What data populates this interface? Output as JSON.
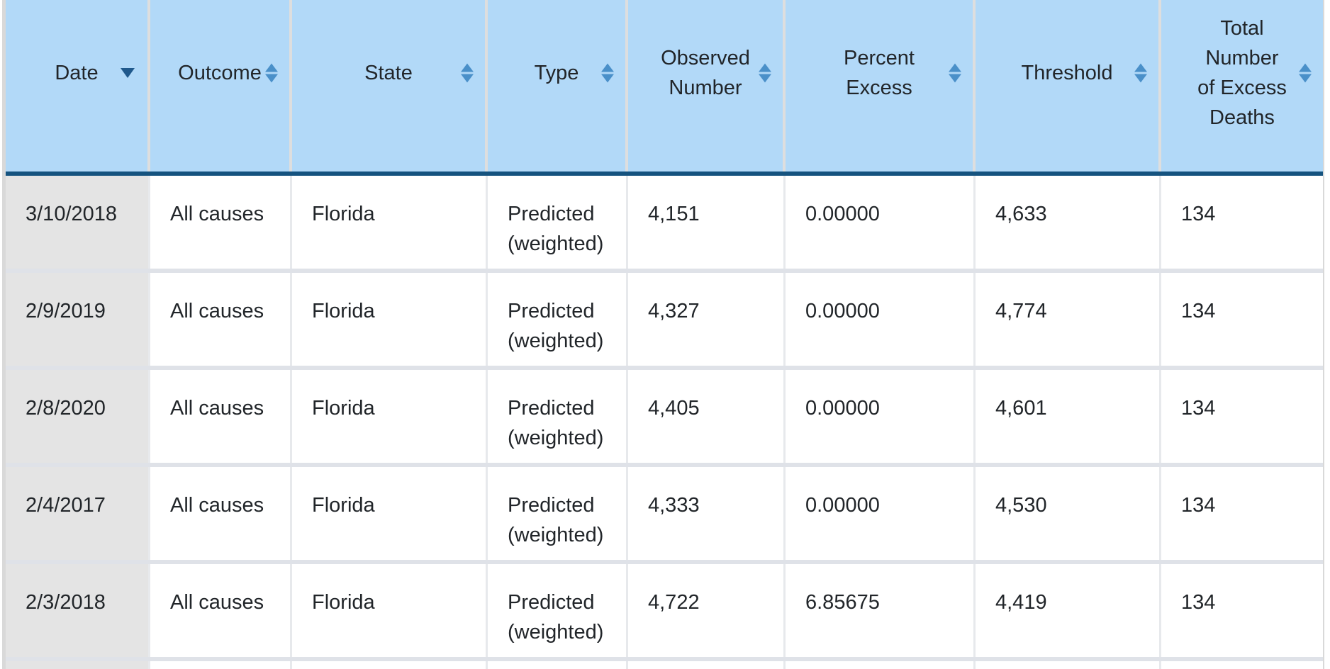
{
  "table": {
    "header": {
      "columns": [
        {
          "label": "Date",
          "sort": "descending"
        },
        {
          "label": "Outcome",
          "sort": "none"
        },
        {
          "label": "State",
          "sort": "none"
        },
        {
          "label": "Type",
          "sort": "none"
        },
        {
          "label": "Observed Number",
          "sort": "none"
        },
        {
          "label": "Percent Excess",
          "sort": "none"
        },
        {
          "label": "Threshold",
          "sort": "none"
        },
        {
          "label": "Total Number of Excess Deaths",
          "sort": "none"
        }
      ]
    },
    "rows": [
      [
        "3/10/2018",
        "All causes",
        "Florida",
        "Predicted (weighted)",
        "4,151",
        "0.00000",
        "4,633",
        "134"
      ],
      [
        "2/9/2019",
        "All causes",
        "Florida",
        "Predicted (weighted)",
        "4,327",
        "0.00000",
        "4,774",
        "134"
      ],
      [
        "2/8/2020",
        "All causes",
        "Florida",
        "Predicted (weighted)",
        "4,405",
        "0.00000",
        "4,601",
        "134"
      ],
      [
        "2/4/2017",
        "All causes",
        "Florida",
        "Predicted (weighted)",
        "4,333",
        "0.00000",
        "4,530",
        "134"
      ],
      [
        "2/3/2018",
        "All causes",
        "Florida",
        "Predicted (weighted)",
        "4,722",
        "6.85675",
        "4,419",
        "134"
      ]
    ],
    "colors": {
      "header_bg": "#b2d9f8",
      "header_bottom_border": "#15537f",
      "sorted_column_bg": "#e4e4e4",
      "row_separator": "#dfe2e8",
      "column_separator_header": "#dedede",
      "column_separator_body": "#e7e9ec",
      "sort_arrow_active": "#20598c",
      "sort_arrow_inactive": "#4a90c9",
      "table_border": "#d9d9d9",
      "text": "#212529",
      "body_bg": "#ffffff"
    }
  }
}
